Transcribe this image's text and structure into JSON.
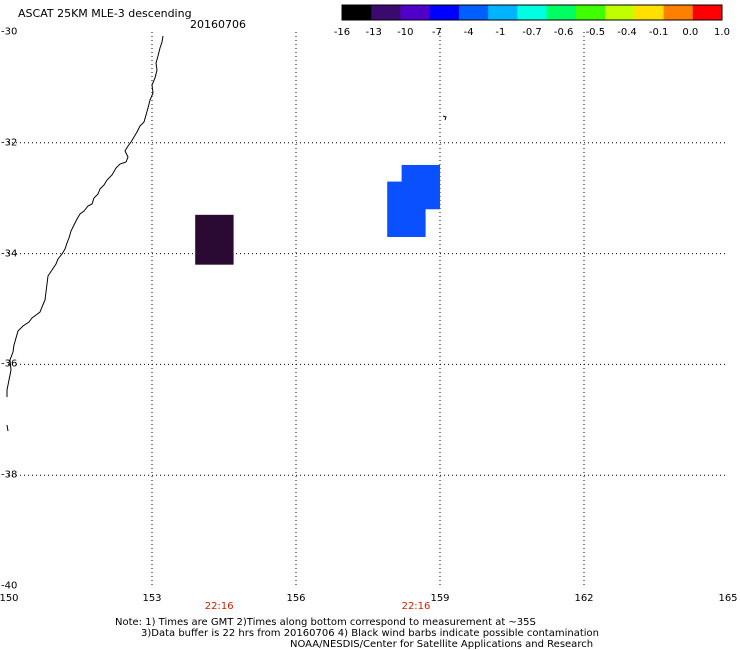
{
  "title": {
    "product": "ASCAT 25KM MLE-3 descending",
    "date": "20160706"
  },
  "colorbar": {
    "labels": [
      "-16",
      "-13",
      "-10",
      "-7",
      "-4",
      "-1",
      "-0.7",
      "-0.6",
      "-0.5",
      "-0.4",
      "-0.1",
      "0.0",
      "1.0"
    ],
    "colors": [
      "#000000",
      "#3a0a6e",
      "#5000c8",
      "#0000ff",
      "#0060ff",
      "#00b4ff",
      "#00ffe0",
      "#00ff60",
      "#40ff00",
      "#c0ff00",
      "#ffe000",
      "#ff8000",
      "#ff0000"
    ]
  },
  "map": {
    "lon_ticks": [
      "150",
      "153",
      "156",
      "159",
      "162",
      "165"
    ],
    "lat_ticks": [
      "-30",
      "-32",
      "-34",
      "-36",
      "-38",
      "-40"
    ],
    "time_labels": [
      {
        "text": "22:16",
        "lon": 154.4
      },
      {
        "text": "22:16",
        "lon": 158.5
      }
    ],
    "cells": [
      {
        "lon": [
          153.9,
          154.7
        ],
        "lat": [
          -33.3,
          -34.2
        ],
        "value": "-16",
        "color": "#2a0a33"
      },
      {
        "lon": [
          158.2,
          159.0
        ],
        "lat": [
          -32.4,
          -33.2
        ],
        "value": "-7",
        "color": "#0a50ff"
      },
      {
        "lon": [
          157.9,
          158.7
        ],
        "lat": [
          -32.7,
          -33.7
        ],
        "value": "-7",
        "color": "#0a50ff"
      }
    ]
  },
  "notes": {
    "line1": "Note: 1) Times are GMT 2)Times along bottom correspond to measurement at ~35S",
    "line2": "3)Data buffer is 22 hrs from 20160706 4) Black wind barbs indicate possible contamination",
    "line3": "NOAA/NESDIS/Center for Satellite Applications and Research"
  }
}
